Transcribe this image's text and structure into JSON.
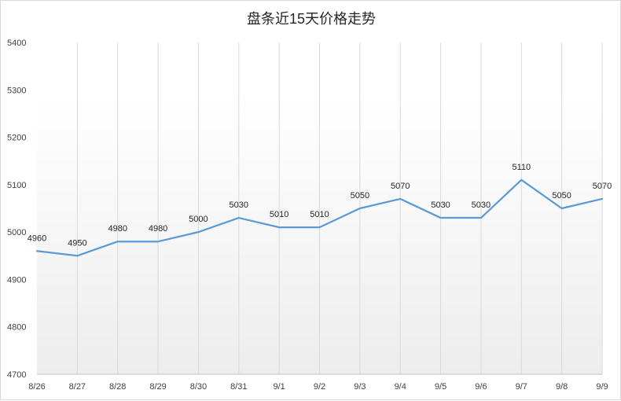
{
  "chart_data": {
    "type": "line",
    "title": "盘条近15天价格走势",
    "xlabel": "",
    "ylabel": "",
    "categories": [
      "8/26",
      "8/27",
      "8/28",
      "8/29",
      "8/30",
      "8/31",
      "9/1",
      "9/2",
      "9/3",
      "9/4",
      "9/5",
      "9/6",
      "9/7",
      "9/8",
      "9/9"
    ],
    "series": [
      {
        "values": [
          4960,
          4950,
          4980,
          4980,
          5000,
          5030,
          5010,
          5010,
          5050,
          5070,
          5030,
          5030,
          5110,
          5050,
          5070
        ],
        "color": "#5b9bd5"
      }
    ],
    "ylim": [
      4700,
      5400
    ],
    "yticks": [
      4700,
      4800,
      4900,
      5000,
      5100,
      5200,
      5300,
      5400
    ],
    "grid": "vertical",
    "legend": "none",
    "data_labels": true,
    "background": "gradient-white-to-light-gray"
  }
}
